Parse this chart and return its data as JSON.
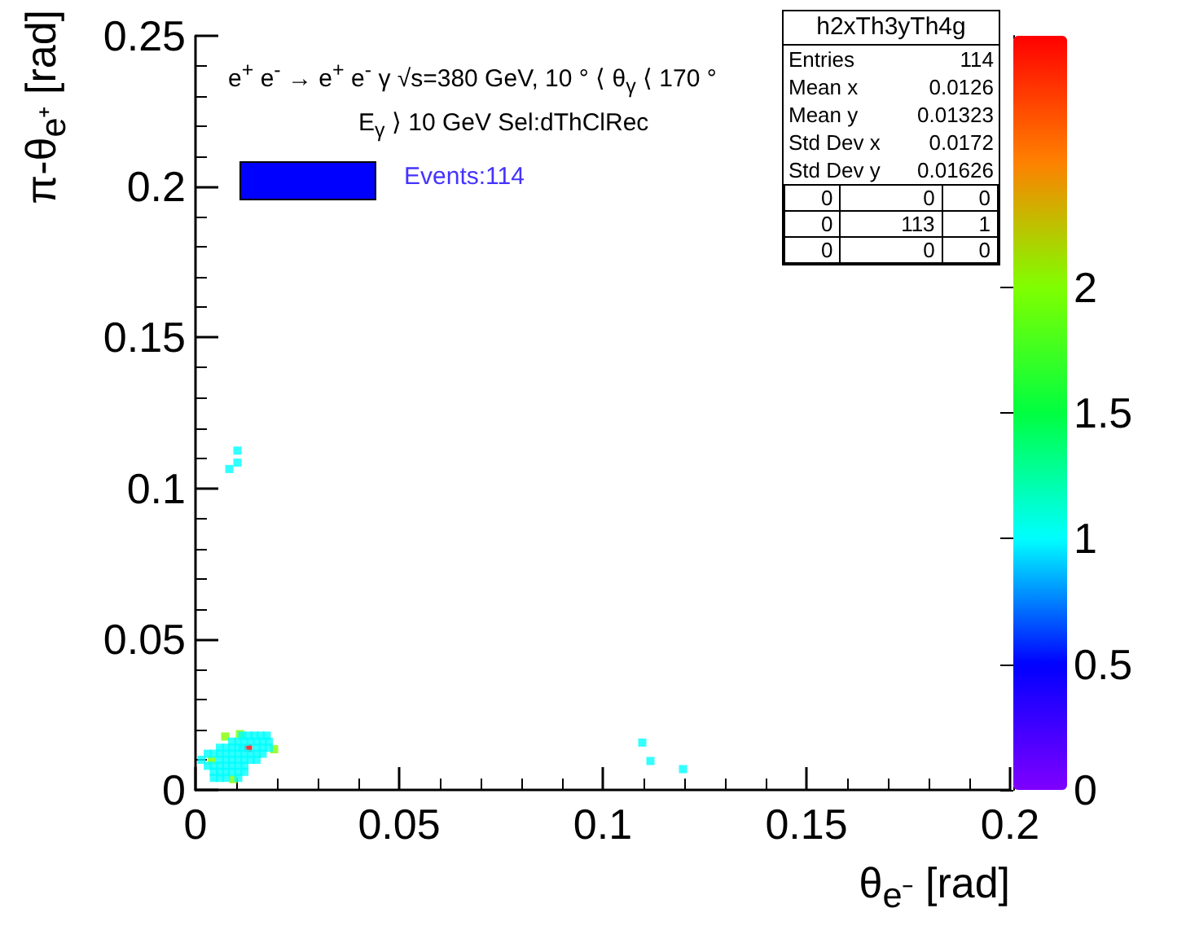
{
  "chart_data": {
    "type": "scatter",
    "xlabel": "θ$_{e⁻}$ [rad]",
    "ylabel": "π-θ$_{e⁺}$ [rad]",
    "annotations": [
      "e$^{+}$ e$^{-}$ → e$^{+}$ e$^{-}$ γ √s=380 GeV, 10 ° ⟨ θ$_{γ}$ ⟨ 170 °",
      "E$_{γ}$ ⟩ 10 GeV Sel:dThClRec",
      "Events:114",
      "h2xTh3yTh4g",
      "Entries",
      "114",
      "Mean x",
      "0.0126",
      "Mean y",
      "0.01323",
      "Std Dev x",
      "0.0172",
      "Std Dev y",
      "0.01626",
      "0",
      "0",
      "0",
      "0",
      "113",
      "1",
      "0",
      "0",
      "0"
    ],
    "x": [
      0.0103,
      0.0103,
      0.0083,
      0.1097,
      0.1117,
      0.1197,
      0.0129,
      0.0073,
      0.0109,
      0.004,
      0.0193,
      0.0093,
      0.0115,
      0.013,
      0.0145,
      0.016,
      0.0175,
      0.009,
      0.0105,
      0.012,
      0.0135,
      0.015,
      0.0165,
      0.018,
      0.006,
      0.0075,
      0.009,
      0.0105,
      0.0115,
      0.015,
      0.0165,
      0.018,
      0.003,
      0.0045,
      0.006,
      0.0075,
      0.009,
      0.0105,
      0.012,
      0.0135,
      0.015,
      0.0165,
      0.0015,
      0.006,
      0.0075,
      0.009,
      0.0105,
      0.012,
      0.0135,
      0.015,
      0.003,
      0.0045,
      0.006,
      0.0075,
      0.009,
      0.0105,
      0.012,
      0.0045,
      0.006,
      0.0075,
      0.009,
      0.0105,
      0.012,
      0.0045,
      0.006,
      0.0075,
      0.0105
    ],
    "values": [
      0.1125,
      0.1085,
      0.1064,
      0.0157,
      0.0096,
      0.0069,
      0.0139,
      0.0177,
      0.0185,
      0.0099,
      0.0135,
      0.0036,
      0.018,
      0.018,
      0.018,
      0.018,
      0.018,
      0.016,
      0.016,
      0.016,
      0.016,
      0.016,
      0.016,
      0.016,
      0.014,
      0.014,
      0.014,
      0.014,
      0.014,
      0.014,
      0.014,
      0.014,
      0.012,
      0.012,
      0.012,
      0.012,
      0.012,
      0.012,
      0.012,
      0.012,
      0.012,
      0.012,
      0.01,
      0.01,
      0.01,
      0.01,
      0.01,
      0.01,
      0.01,
      0.01,
      0.008,
      0.008,
      0.008,
      0.008,
      0.008,
      0.008,
      0.008,
      0.006,
      0.006,
      0.006,
      0.006,
      0.006,
      0.006,
      0.004,
      0.004,
      0.004,
      0.004
    ],
    "cvalues": [
      1,
      1,
      1,
      1,
      1,
      1,
      3,
      2,
      2,
      2,
      2,
      2,
      1,
      1,
      1,
      1,
      1,
      1,
      1,
      1,
      1,
      1,
      1,
      1,
      1,
      1,
      1,
      1,
      1,
      1,
      1,
      1,
      1,
      1,
      1,
      1,
      1,
      1,
      1,
      1,
      1,
      1,
      1,
      1,
      1,
      1,
      1,
      1,
      1,
      1,
      1,
      1,
      1,
      1,
      1,
      1,
      1,
      1,
      1,
      1,
      1,
      1,
      1,
      1,
      1,
      1,
      1
    ],
    "xlim": [
      0,
      0.2
    ],
    "xticks": [
      0,
      0.05,
      0.1,
      0.15,
      0.2
    ],
    "ylim": [
      0,
      0.25
    ],
    "yticks": [
      0,
      0.05,
      0.1,
      0.15,
      0.2,
      0.25
    ],
    "clim": [
      0,
      3
    ],
    "cticks": [
      0,
      0.5,
      1,
      1.5,
      2
    ],
    "marker": "square",
    "grid": false
  }
}
